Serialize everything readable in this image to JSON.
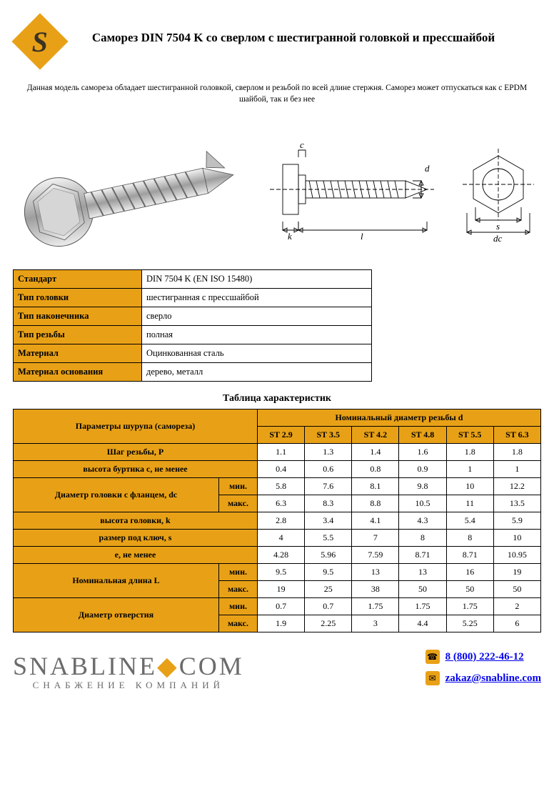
{
  "colors": {
    "accent": "#e8a117",
    "text": "#000000",
    "border": "#000000",
    "link": "#0000ee",
    "brand_gray": "#6b6b6b",
    "background": "#ffffff"
  },
  "header": {
    "logo_letter": "S",
    "title": "Саморез DIN 7504 K со сверлом с шестигранной головкой и прессшайбой"
  },
  "description": "Данная модель самореза обладает шестигранной головкой, сверлом и резьбой по всей длине стержня. Саморез может отпускаться как с EPDM шайбой, так и без нее",
  "diagram_labels": {
    "c": "c",
    "k": "k",
    "l": "l",
    "d": "d",
    "s": "s",
    "dc": "dc"
  },
  "spec_table": {
    "rows": [
      [
        "Стандарт",
        "DIN 7504 K (EN ISO 15480)"
      ],
      [
        "Тип головки",
        "шестигранная с прессшайбой"
      ],
      [
        "Тип наконечника",
        "сверло"
      ],
      [
        "Тип резьбы",
        "полная"
      ],
      [
        "Материал",
        "Оцинкованная сталь"
      ],
      [
        "Материал основания",
        "дерево, металл"
      ]
    ]
  },
  "char_table": {
    "title": "Таблица характеристик",
    "param_header": "Параметры шурупа (самореза)",
    "diameter_header": "Номинальный диаметр резьбы d",
    "columns": [
      "ST 2.9",
      "ST 3.5",
      "ST 4.2",
      "ST 4.8",
      "ST 5.5",
      "ST 6.3"
    ],
    "min_label": "мин.",
    "max_label": "макс.",
    "rows": [
      {
        "label": "Шаг резьбы, P",
        "vals": [
          "1.1",
          "1.3",
          "1.4",
          "1.6",
          "1.8",
          "1.8"
        ]
      },
      {
        "label": "высота буртика с, не менее",
        "vals": [
          "0.4",
          "0.6",
          "0.8",
          "0.9",
          "1",
          "1"
        ]
      },
      {
        "label": "Диаметр головки с фланцем, dc",
        "min": [
          "5.8",
          "7.6",
          "8.1",
          "9.8",
          "10",
          "12.2"
        ],
        "max": [
          "6.3",
          "8.3",
          "8.8",
          "10.5",
          "11",
          "13.5"
        ]
      },
      {
        "label": "высота головки, k",
        "vals": [
          "2.8",
          "3.4",
          "4.1",
          "4.3",
          "5.4",
          "5.9"
        ]
      },
      {
        "label": "размер под ключ, s",
        "vals": [
          "4",
          "5.5",
          "7",
          "8",
          "8",
          "10"
        ]
      },
      {
        "label": "e, не менее",
        "vals": [
          "4.28",
          "5.96",
          "7.59",
          "8.71",
          "8.71",
          "10.95"
        ]
      },
      {
        "label": "Номинальная длина L",
        "min": [
          "9.5",
          "9.5",
          "13",
          "13",
          "16",
          "19"
        ],
        "max": [
          "19",
          "25",
          "38",
          "50",
          "50",
          "50"
        ]
      },
      {
        "label": "Диаметр отверстия",
        "min": [
          "0.7",
          "0.7",
          "1.75",
          "1.75",
          "1.75",
          "2"
        ],
        "max": [
          "1.9",
          "2.25",
          "3",
          "4.4",
          "5.25",
          "6"
        ]
      }
    ]
  },
  "footer": {
    "brand_left": "SNABLINE",
    "brand_right": "COM",
    "tagline": "СНАБЖЕНИЕ   КОМПАНИЙ",
    "phone": "8 (800) 222-46-12",
    "email": "zakaz@snabline.com"
  }
}
